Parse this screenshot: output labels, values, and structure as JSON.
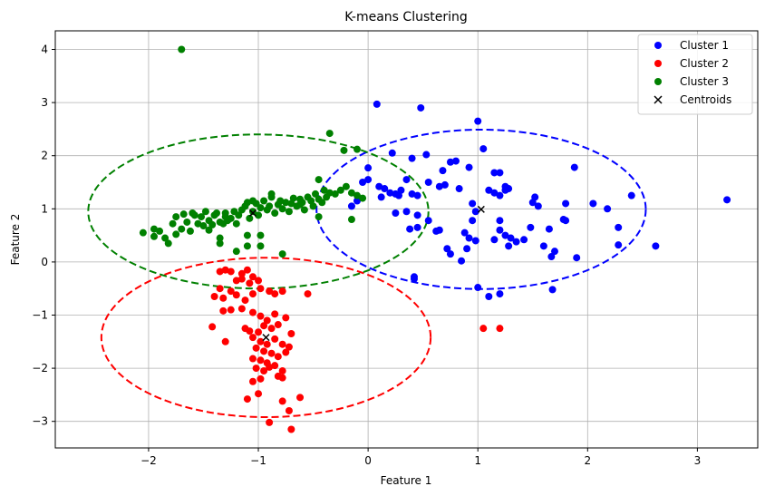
{
  "chart_data": {
    "type": "scatter",
    "title": "K-means Clustering",
    "xlabel": "Feature 1",
    "ylabel": "Feature 2",
    "xlim": [
      -2.85,
      3.55
    ],
    "ylim": [
      -3.5,
      4.35
    ],
    "xticks": [
      -2,
      -1,
      0,
      1,
      2,
      3
    ],
    "yticks": [
      -3,
      -2,
      -1,
      0,
      1,
      2,
      3,
      4
    ],
    "grid": true,
    "legend_position": "top-right",
    "series": [
      {
        "name": "Cluster 1",
        "color": "#0000ff",
        "marker": "circle",
        "points": [
          [
            0.08,
            2.97
          ],
          [
            0.48,
            2.9
          ],
          [
            1.0,
            2.65
          ],
          [
            0.22,
            2.05
          ],
          [
            0.4,
            1.95
          ],
          [
            0.53,
            2.02
          ],
          [
            0.75,
            1.88
          ],
          [
            0.8,
            1.9
          ],
          [
            0.92,
            1.78
          ],
          [
            1.05,
            2.13
          ],
          [
            0.68,
            1.72
          ],
          [
            0.83,
            1.38
          ],
          [
            0.0,
            1.77
          ],
          [
            0.0,
            1.55
          ],
          [
            -0.05,
            1.5
          ],
          [
            0.1,
            1.42
          ],
          [
            0.15,
            1.38
          ],
          [
            0.2,
            1.3
          ],
          [
            0.25,
            1.28
          ],
          [
            0.3,
            1.35
          ],
          [
            0.35,
            1.55
          ],
          [
            0.45,
            1.25
          ],
          [
            0.55,
            1.5
          ],
          [
            0.65,
            1.42
          ],
          [
            0.7,
            1.45
          ],
          [
            0.12,
            1.22
          ],
          [
            0.28,
            1.25
          ],
          [
            0.4,
            1.28
          ],
          [
            -0.1,
            1.15
          ],
          [
            -0.15,
            1.05
          ],
          [
            0.35,
            0.95
          ],
          [
            0.45,
            0.88
          ],
          [
            0.38,
            0.62
          ],
          [
            0.45,
            0.65
          ],
          [
            0.62,
            0.58
          ],
          [
            0.72,
            0.25
          ],
          [
            0.75,
            0.15
          ],
          [
            0.85,
            0.02
          ],
          [
            0.88,
            0.55
          ],
          [
            0.9,
            0.25
          ],
          [
            0.92,
            0.45
          ],
          [
            0.95,
            0.78
          ],
          [
            0.98,
            0.95
          ],
          [
            0.95,
            1.1
          ],
          [
            1.1,
            1.35
          ],
          [
            1.15,
            1.68
          ],
          [
            1.2,
            1.68
          ],
          [
            1.15,
            1.3
          ],
          [
            1.2,
            1.25
          ],
          [
            1.25,
            1.42
          ],
          [
            1.28,
            1.38
          ],
          [
            1.25,
            1.35
          ],
          [
            1.15,
            0.42
          ],
          [
            1.2,
            0.6
          ],
          [
            1.2,
            0.78
          ],
          [
            1.25,
            0.5
          ],
          [
            1.3,
            0.45
          ],
          [
            1.28,
            0.3
          ],
          [
            1.35,
            0.38
          ],
          [
            1.42,
            0.42
          ],
          [
            1.48,
            0.65
          ],
          [
            1.5,
            1.12
          ],
          [
            1.52,
            1.22
          ],
          [
            1.55,
            1.05
          ],
          [
            1.6,
            0.3
          ],
          [
            1.65,
            0.62
          ],
          [
            1.67,
            0.1
          ],
          [
            1.7,
            0.2
          ],
          [
            1.78,
            0.8
          ],
          [
            1.8,
            1.1
          ],
          [
            1.8,
            0.78
          ],
          [
            1.88,
            1.78
          ],
          [
            1.9,
            0.08
          ],
          [
            2.05,
            1.1
          ],
          [
            2.18,
            1.0
          ],
          [
            2.28,
            0.65
          ],
          [
            2.28,
            0.32
          ],
          [
            2.4,
            1.25
          ],
          [
            2.62,
            0.3
          ],
          [
            3.27,
            1.17
          ],
          [
            1.0,
            -0.48
          ],
          [
            1.1,
            -0.65
          ],
          [
            1.2,
            -0.6
          ],
          [
            1.68,
            -0.52
          ],
          [
            0.42,
            -0.28
          ],
          [
            0.42,
            -0.32
          ],
          [
            0.25,
            0.92
          ],
          [
            0.55,
            0.78
          ],
          [
            0.65,
            0.6
          ],
          [
            0.98,
            0.4
          ]
        ]
      },
      {
        "name": "Cluster 2",
        "color": "#ff0000",
        "marker": "circle",
        "points": [
          [
            -1.35,
            -0.18
          ],
          [
            -1.3,
            -0.15
          ],
          [
            -1.25,
            -0.18
          ],
          [
            -1.15,
            -0.22
          ],
          [
            -1.1,
            -0.15
          ],
          [
            -1.2,
            -0.35
          ],
          [
            -1.15,
            -0.32
          ],
          [
            -1.05,
            -0.28
          ],
          [
            -1.0,
            -0.35
          ],
          [
            -1.08,
            -0.4
          ],
          [
            -1.35,
            -0.5
          ],
          [
            -1.25,
            -0.55
          ],
          [
            -1.4,
            -0.65
          ],
          [
            -1.32,
            -0.68
          ],
          [
            -1.2,
            -0.62
          ],
          [
            -1.12,
            -0.72
          ],
          [
            -1.05,
            -0.6
          ],
          [
            -0.98,
            -0.5
          ],
          [
            -0.9,
            -0.55
          ],
          [
            -0.85,
            -0.6
          ],
          [
            -0.78,
            -0.55
          ],
          [
            -0.55,
            -0.6
          ],
          [
            -1.32,
            -0.92
          ],
          [
            -1.25,
            -0.9
          ],
          [
            -1.15,
            -0.88
          ],
          [
            -1.05,
            -0.95
          ],
          [
            -0.98,
            -1.02
          ],
          [
            -0.92,
            -1.1
          ],
          [
            -0.85,
            -0.98
          ],
          [
            -1.42,
            -1.22
          ],
          [
            -1.12,
            -1.25
          ],
          [
            -1.08,
            -1.3
          ],
          [
            -1.0,
            -1.32
          ],
          [
            -0.95,
            -1.2
          ],
          [
            -0.88,
            -1.25
          ],
          [
            -0.82,
            -1.18
          ],
          [
            -0.75,
            -1.05
          ],
          [
            -0.7,
            -1.35
          ],
          [
            -1.05,
            -1.42
          ],
          [
            -0.98,
            -1.5
          ],
          [
            -0.92,
            -1.55
          ],
          [
            -0.85,
            -1.45
          ],
          [
            -0.78,
            -1.55
          ],
          [
            -0.72,
            -1.6
          ],
          [
            -1.3,
            -1.5
          ],
          [
            -1.02,
            -1.62
          ],
          [
            -0.95,
            -1.68
          ],
          [
            -0.88,
            -1.72
          ],
          [
            -0.82,
            -1.78
          ],
          [
            -0.75,
            -1.7
          ],
          [
            -1.05,
            -1.82
          ],
          [
            -0.98,
            -1.85
          ],
          [
            -0.92,
            -1.9
          ],
          [
            -0.85,
            -1.95
          ],
          [
            -0.78,
            -2.05
          ],
          [
            -1.02,
            -2.0
          ],
          [
            -0.95,
            -2.05
          ],
          [
            -0.9,
            -1.98
          ],
          [
            -0.82,
            -2.15
          ],
          [
            -0.78,
            -2.18
          ],
          [
            -1.05,
            -2.25
          ],
          [
            -0.98,
            -2.2
          ],
          [
            -1.1,
            -2.58
          ],
          [
            -1.0,
            -2.48
          ],
          [
            -0.78,
            -2.62
          ],
          [
            -0.62,
            -2.55
          ],
          [
            -0.72,
            -2.8
          ],
          [
            -0.9,
            -3.02
          ],
          [
            -0.7,
            -3.15
          ],
          [
            1.05,
            -1.25
          ],
          [
            1.2,
            -1.25
          ]
        ]
      },
      {
        "name": "Cluster 3",
        "color": "#008000",
        "marker": "circle",
        "points": [
          [
            -1.7,
            4.0
          ],
          [
            -0.35,
            2.42
          ],
          [
            -0.22,
            2.1
          ],
          [
            -0.1,
            2.12
          ],
          [
            -0.45,
            1.55
          ],
          [
            -2.05,
            0.55
          ],
          [
            -1.95,
            0.48
          ],
          [
            -1.95,
            0.62
          ],
          [
            -1.9,
            0.58
          ],
          [
            -1.85,
            0.45
          ],
          [
            -1.82,
            0.35
          ],
          [
            -1.78,
            0.72
          ],
          [
            -1.75,
            0.85
          ],
          [
            -1.7,
            0.62
          ],
          [
            -1.68,
            0.9
          ],
          [
            -1.65,
            0.75
          ],
          [
            -1.62,
            0.58
          ],
          [
            -1.6,
            0.92
          ],
          [
            -1.55,
            0.72
          ],
          [
            -1.52,
            0.85
          ],
          [
            -1.5,
            0.68
          ],
          [
            -1.48,
            0.95
          ],
          [
            -1.45,
            0.78
          ],
          [
            -1.42,
            0.7
          ],
          [
            -1.4,
            0.88
          ],
          [
            -1.38,
            0.92
          ],
          [
            -1.35,
            0.75
          ],
          [
            -1.32,
            0.72
          ],
          [
            -1.3,
            0.85
          ],
          [
            -1.28,
            0.78
          ],
          [
            -1.25,
            0.82
          ],
          [
            -1.22,
            0.95
          ],
          [
            -1.2,
            0.72
          ],
          [
            -1.18,
            0.88
          ],
          [
            -1.15,
            0.98
          ],
          [
            -1.12,
            1.05
          ],
          [
            -1.1,
            1.12
          ],
          [
            -1.08,
            0.82
          ],
          [
            -1.05,
            0.95
          ],
          [
            -1.02,
            1.1
          ],
          [
            -1.0,
            0.88
          ],
          [
            -0.98,
            1.02
          ],
          [
            -0.95,
            1.15
          ],
          [
            -0.92,
            0.98
          ],
          [
            -0.9,
            1.05
          ],
          [
            -0.88,
            1.22
          ],
          [
            -0.85,
            0.92
          ],
          [
            -0.82,
            1.08
          ],
          [
            -0.8,
            1.15
          ],
          [
            -0.78,
            1.0
          ],
          [
            -0.75,
            1.12
          ],
          [
            -0.72,
            0.95
          ],
          [
            -0.7,
            1.1
          ],
          [
            -0.68,
            1.2
          ],
          [
            -0.65,
            1.05
          ],
          [
            -0.62,
            1.18
          ],
          [
            -0.6,
            1.12
          ],
          [
            -0.58,
            0.98
          ],
          [
            -0.55,
            1.22
          ],
          [
            -0.52,
            1.15
          ],
          [
            -0.5,
            1.05
          ],
          [
            -0.48,
            1.28
          ],
          [
            -0.45,
            1.18
          ],
          [
            -0.42,
            1.12
          ],
          [
            -0.4,
            1.35
          ],
          [
            -0.38,
            1.22
          ],
          [
            -0.35,
            1.3
          ],
          [
            -0.3,
            1.28
          ],
          [
            -0.25,
            1.35
          ],
          [
            -0.2,
            1.42
          ],
          [
            -0.15,
            1.3
          ],
          [
            -0.1,
            1.25
          ],
          [
            -0.05,
            1.2
          ],
          [
            -0.15,
            0.8
          ],
          [
            -0.45,
            0.85
          ],
          [
            -1.35,
            0.45
          ],
          [
            -1.35,
            0.35
          ],
          [
            -1.1,
            0.5
          ],
          [
            -1.1,
            0.3
          ],
          [
            -0.98,
            0.5
          ],
          [
            -0.98,
            0.3
          ],
          [
            -0.78,
            0.15
          ],
          [
            -1.2,
            0.2
          ],
          [
            -0.88,
            1.28
          ],
          [
            -1.05,
            1.15
          ],
          [
            -1.58,
            0.88
          ],
          [
            -1.75,
            0.52
          ],
          [
            -1.3,
            0.92
          ],
          [
            -0.62,
            1.08
          ],
          [
            -1.45,
            0.6
          ]
        ]
      }
    ],
    "centroids": {
      "name": "Centroids",
      "color": "#000000",
      "marker": "x",
      "points": [
        [
          1.03,
          0.99
        ],
        [
          -0.93,
          -1.42
        ],
        [
          -1.05,
          0.92
        ]
      ]
    },
    "ellipses": [
      {
        "cluster": "Cluster 1",
        "color": "#0000ff",
        "center": [
          1.03,
          0.99
        ],
        "rx": 1.5,
        "ry": 1.5
      },
      {
        "cluster": "Cluster 2",
        "color": "#ff0000",
        "center": [
          -0.93,
          -1.42
        ],
        "rx": 1.5,
        "ry": 1.5
      },
      {
        "cluster": "Cluster 3",
        "color": "#008000",
        "center": [
          -1.0,
          0.95
        ],
        "rx": 1.55,
        "ry": 1.45
      }
    ]
  }
}
